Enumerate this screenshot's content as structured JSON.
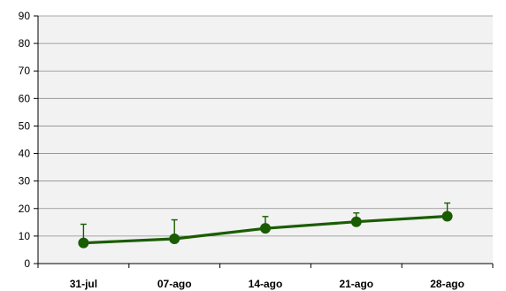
{
  "chart_data": {
    "type": "line",
    "title": "",
    "xlabel": "",
    "ylabel": "",
    "categories": [
      "31-jul",
      "07-ago",
      "14-ago",
      "21-ago",
      "28-ago"
    ],
    "ylim": [
      0,
      90
    ],
    "yticks": [
      0,
      10,
      20,
      30,
      40,
      50,
      60,
      70,
      80,
      90
    ],
    "grid": true,
    "legend": "none",
    "series": [
      {
        "values": [
          7.5,
          9.0,
          12.8,
          15.2,
          17.2
        ],
        "error_plus": [
          6.8,
          6.9,
          4.3,
          3.2,
          4.8
        ]
      }
    ],
    "colors": {
      "line": "#1a5c00",
      "marker": "#1a5c00",
      "plot_background": "#f2f2f2",
      "grid": "#8c8c8c",
      "axis": "#000000"
    }
  }
}
